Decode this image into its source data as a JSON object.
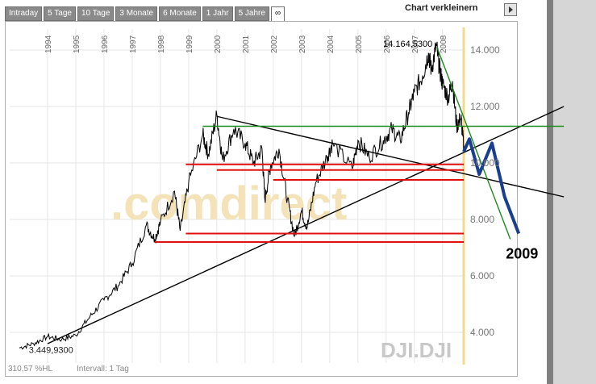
{
  "tabs": [
    "Intraday",
    "5 Tage",
    "10 Tage",
    "3 Monate",
    "6 Monate",
    "1 Jahr",
    "5 Jahre",
    "∞"
  ],
  "active_tab": 7,
  "shrink_label": "Chart verkleinern",
  "footer_left": "310,57 %HL",
  "footer_interval": "Intervall: 1 Tag",
  "watermark": ".comdirect",
  "symbol": "DJI.DJI",
  "colors": {
    "price": "#000000",
    "green": "#1e8a1e",
    "red": "#e01010",
    "forecast": "#1a3f8f",
    "today": "#f5d98a"
  },
  "chart_data": {
    "type": "line",
    "x_axis": {
      "type": "date",
      "labels": [
        "1994",
        "1995",
        "1996",
        "1997",
        "1998",
        "1999",
        "2000",
        "2001",
        "2002",
        "2003",
        "2004",
        "2005",
        "2006",
        "2007",
        "2008"
      ],
      "range": [
        1993.0,
        2008.75
      ]
    },
    "y_axis": {
      "labels": [
        "4.000",
        "6.000",
        "8.000",
        "10.000",
        "12.000",
        "14.000"
      ],
      "values": [
        4000,
        6000,
        8000,
        10000,
        12000,
        14000
      ],
      "range": [
        3000,
        14800
      ],
      "position": "right",
      "grid": true
    },
    "annotations": [
      {
        "text": "14.164,5300",
        "x": 2007.78,
        "y": 14164.53
      },
      {
        "text": "3.449,9300",
        "x": 1993.05,
        "y": 3449.93
      },
      {
        "text": "2009",
        "x": 2010.3,
        "y": 6900
      }
    ],
    "series": [
      {
        "kind": "price",
        "points": [
          [
            1993.0,
            3450
          ],
          [
            1993.5,
            3600
          ],
          [
            1994.0,
            3850
          ],
          [
            1994.5,
            3750
          ],
          [
            1995.0,
            3900
          ],
          [
            1995.5,
            4550
          ],
          [
            1996.0,
            5150
          ],
          [
            1996.5,
            5650
          ],
          [
            1997.0,
            6450
          ],
          [
            1997.5,
            7800
          ],
          [
            1997.8,
            7300
          ],
          [
            1998.0,
            7900
          ],
          [
            1998.5,
            9000
          ],
          [
            1998.7,
            7600
          ],
          [
            1999.0,
            9300
          ],
          [
            1999.5,
            11000
          ],
          [
            1999.7,
            10300
          ],
          [
            2000.0,
            11700
          ],
          [
            2000.2,
            10100
          ],
          [
            2000.6,
            11200
          ],
          [
            2001.0,
            10700
          ],
          [
            2001.3,
            10000
          ],
          [
            2001.6,
            10500
          ],
          [
            2001.7,
            8700
          ],
          [
            2001.9,
            9900
          ],
          [
            2002.2,
            10500
          ],
          [
            2002.5,
            8700
          ],
          [
            2002.75,
            7400
          ],
          [
            2003.0,
            8300
          ],
          [
            2003.2,
            7700
          ],
          [
            2003.5,
            9300
          ],
          [
            2003.9,
            10200
          ],
          [
            2004.1,
            10700
          ],
          [
            2004.8,
            9800
          ],
          [
            2005.0,
            10800
          ],
          [
            2005.4,
            10200
          ],
          [
            2005.9,
            10800
          ],
          [
            2006.2,
            11200
          ],
          [
            2006.5,
            10800
          ],
          [
            2006.8,
            11800
          ],
          [
            2007.0,
            12500
          ],
          [
            2007.3,
            13100
          ],
          [
            2007.5,
            13900
          ],
          [
            2007.6,
            13300
          ],
          [
            2007.78,
            14164
          ],
          [
            2007.9,
            13300
          ],
          [
            2008.0,
            12800
          ],
          [
            2008.2,
            12300
          ],
          [
            2008.35,
            12900
          ],
          [
            2008.5,
            11300
          ],
          [
            2008.65,
            11600
          ],
          [
            2008.75,
            10600
          ]
        ]
      }
    ],
    "trendlines": [
      {
        "color": "black",
        "from": [
          1994.0,
          3600
        ],
        "to": [
          2008.75,
          9750
        ],
        "extends_to": [
          2012.3,
          12000
        ]
      },
      {
        "color": "black",
        "from": [
          2000.0,
          11650
        ],
        "to": [
          2008.75,
          9900
        ],
        "extends_to": [
          2012.3,
          8800
        ]
      },
      {
        "color": "green",
        "from": [
          1999.5,
          11300
        ],
        "to": [
          2012.3,
          11300
        ]
      },
      {
        "color": "green",
        "from": [
          2007.8,
          14100
        ],
        "to": [
          2010.4,
          7300
        ]
      },
      {
        "color": "red",
        "from": [
          1998.9,
          9950
        ],
        "to": [
          2008.75,
          9950
        ]
      },
      {
        "color": "red",
        "from": [
          2000.0,
          9750
        ],
        "to": [
          2008.75,
          9750
        ]
      },
      {
        "color": "red",
        "from": [
          2002.0,
          9400
        ],
        "to": [
          2008.75,
          9400
        ]
      },
      {
        "color": "red",
        "from": [
          1998.9,
          7500
        ],
        "to": [
          2008.75,
          7500
        ]
      },
      {
        "color": "red",
        "from": [
          1997.8,
          7200
        ],
        "to": [
          2008.75,
          7200
        ]
      }
    ],
    "forecast": [
      [
        2008.75,
        10400
      ],
      [
        2008.95,
        10850
      ],
      [
        2009.3,
        9600
      ],
      [
        2009.75,
        10700
      ],
      [
        2010.2,
        8800
      ],
      [
        2010.7,
        7500
      ]
    ]
  }
}
